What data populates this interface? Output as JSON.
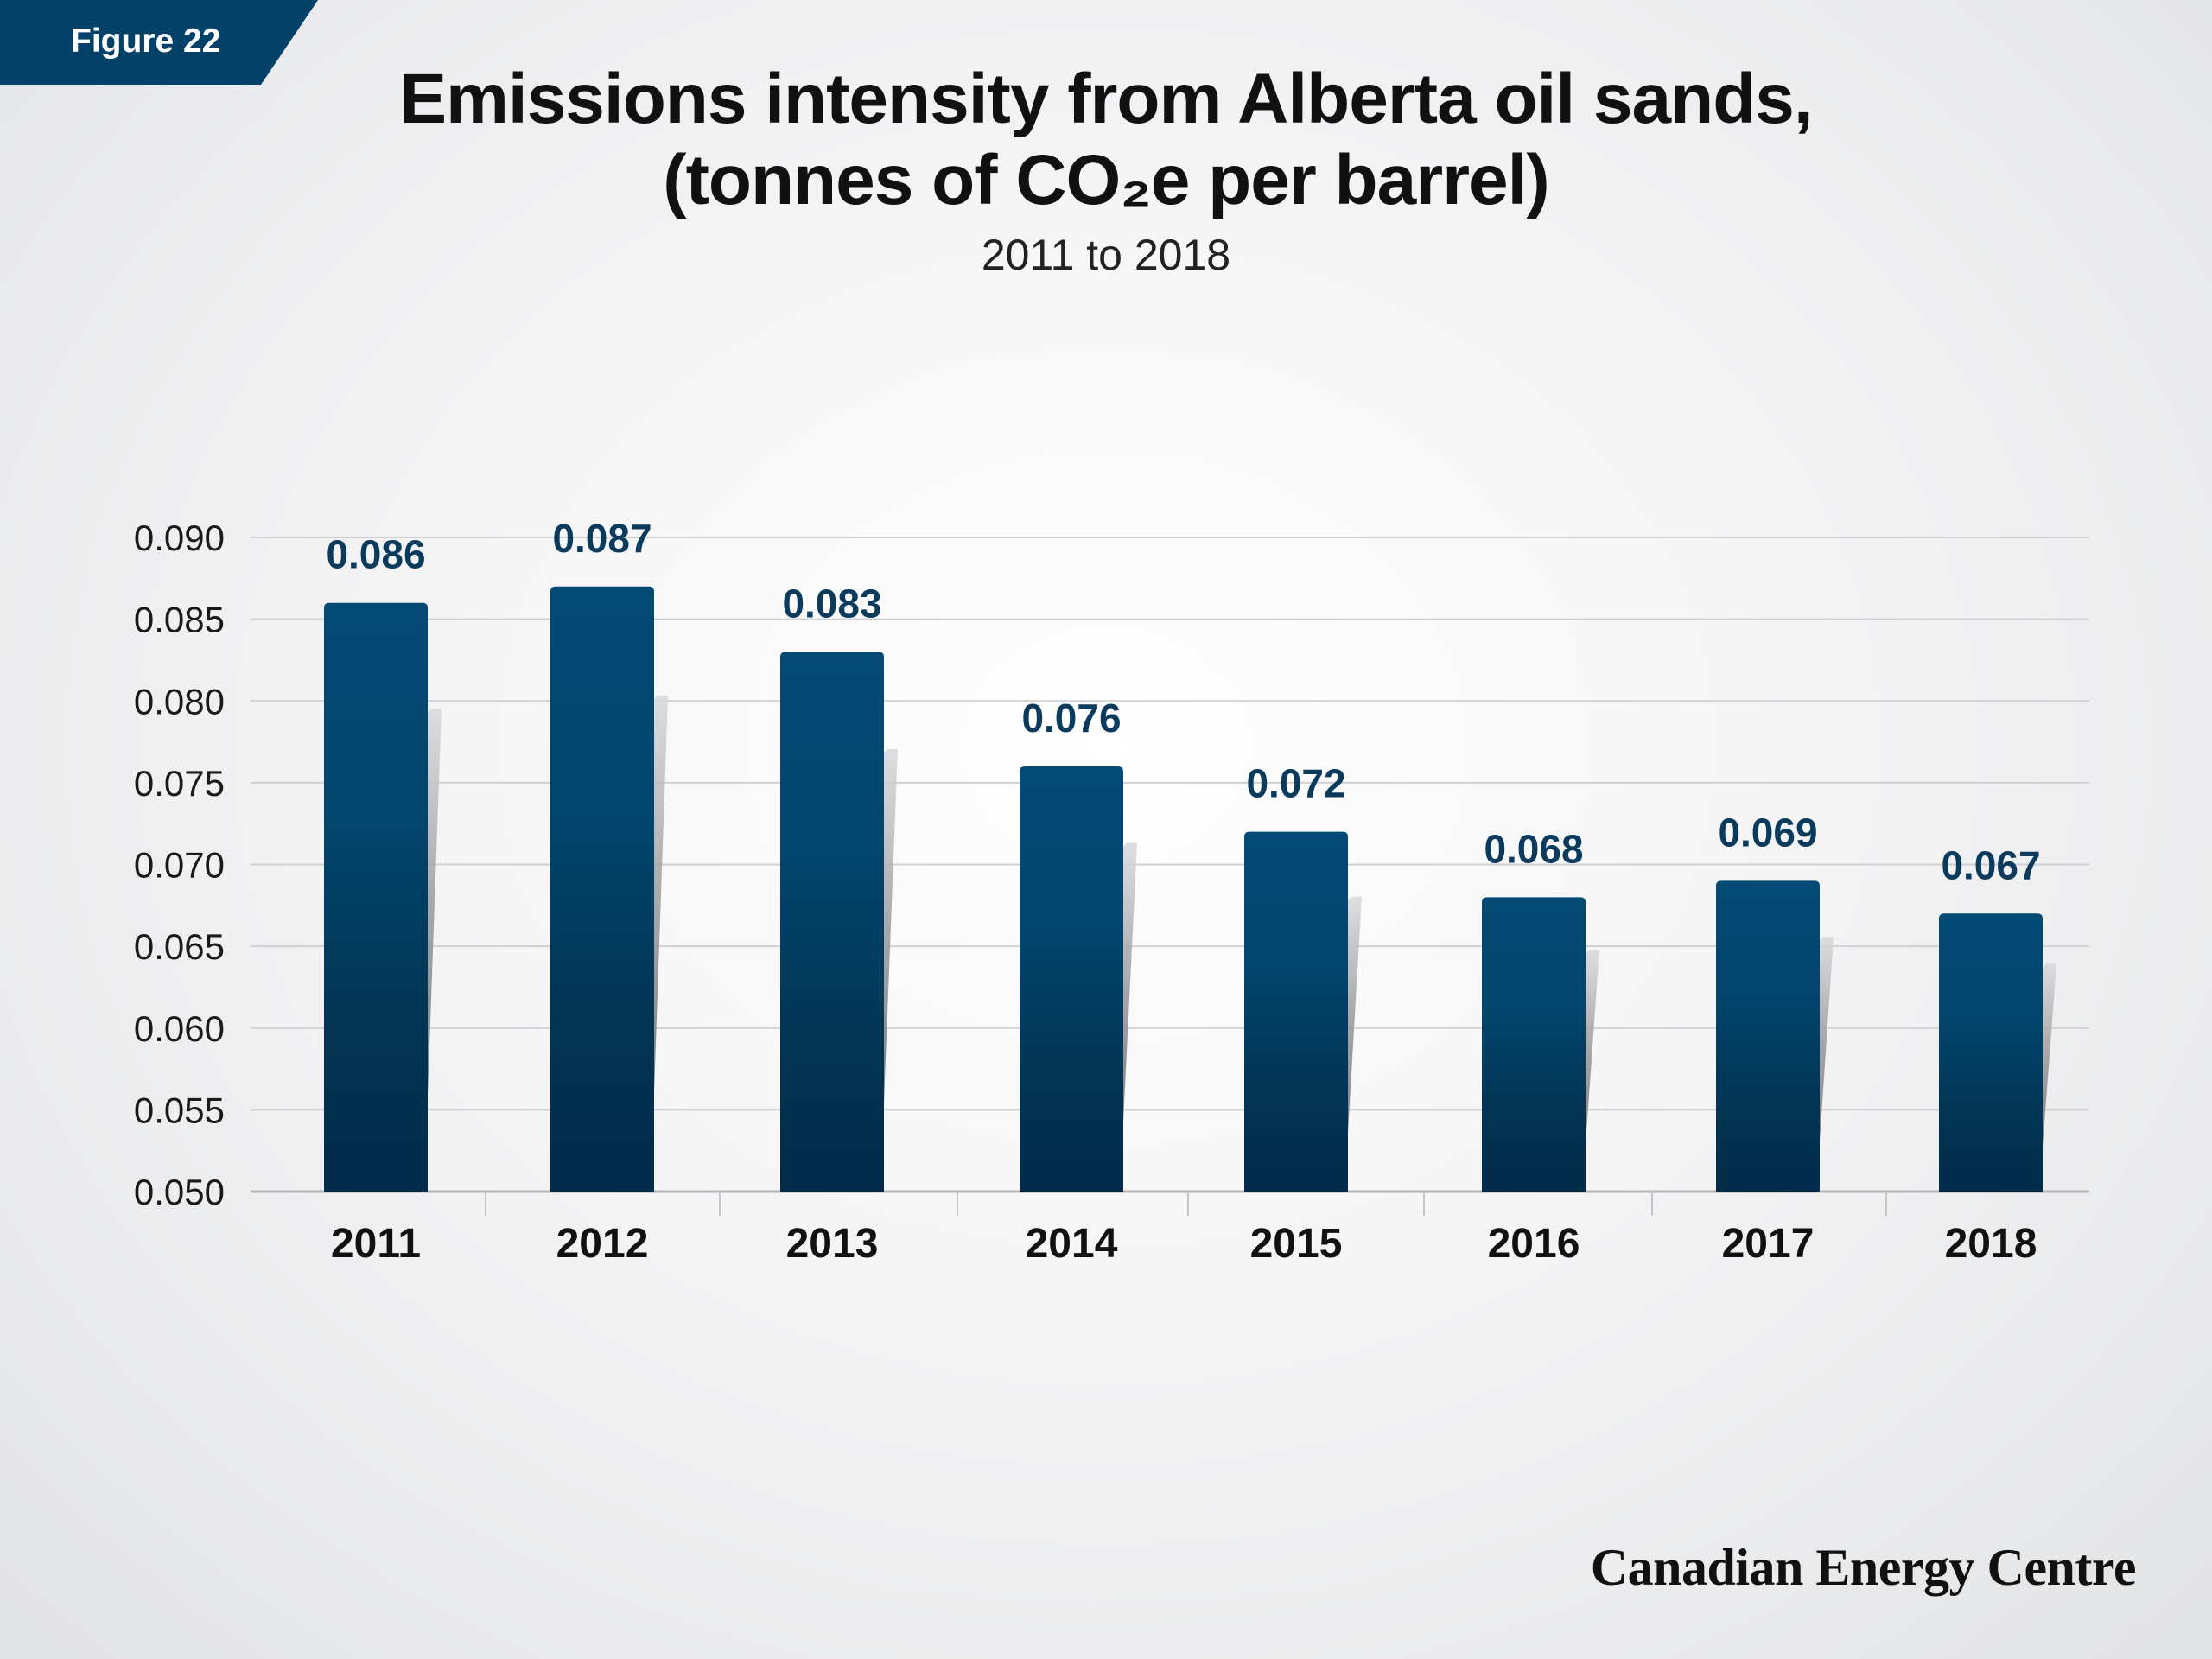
{
  "figure_label": "Figure 22",
  "title_line_1": "Emissions intensity from Alberta oil sands,",
  "title_line_2": "(tonnes of CO₂e per barrel)",
  "subtitle": "2011 to 2018",
  "brand": "Canadian Energy Centre",
  "colors": {
    "tag": "#034168",
    "bar_top": "#02466f",
    "bar_bottom": "#022f4d",
    "value_label": "#0a3a5c",
    "grid": "#cfd0d3",
    "axis_text": "#1a1a1a"
  },
  "chart_data": {
    "type": "bar",
    "categories": [
      "2011",
      "2012",
      "2013",
      "2014",
      "2015",
      "2016",
      "2017",
      "2018"
    ],
    "values": [
      0.086,
      0.087,
      0.083,
      0.076,
      0.072,
      0.068,
      0.069,
      0.067
    ],
    "value_labels": [
      "0.086",
      "0.087",
      "0.083",
      "0.076",
      "0.072",
      "0.068",
      "0.069",
      "0.067"
    ],
    "ylim": [
      0.05,
      0.09
    ],
    "yticks": [
      "0.050",
      "0.055",
      "0.060",
      "0.065",
      "0.070",
      "0.075",
      "0.080",
      "0.085",
      "0.090"
    ],
    "ytick_values": [
      0.05,
      0.055,
      0.06,
      0.065,
      0.07,
      0.075,
      0.08,
      0.085,
      0.09
    ],
    "grid": true,
    "legend": "none"
  }
}
